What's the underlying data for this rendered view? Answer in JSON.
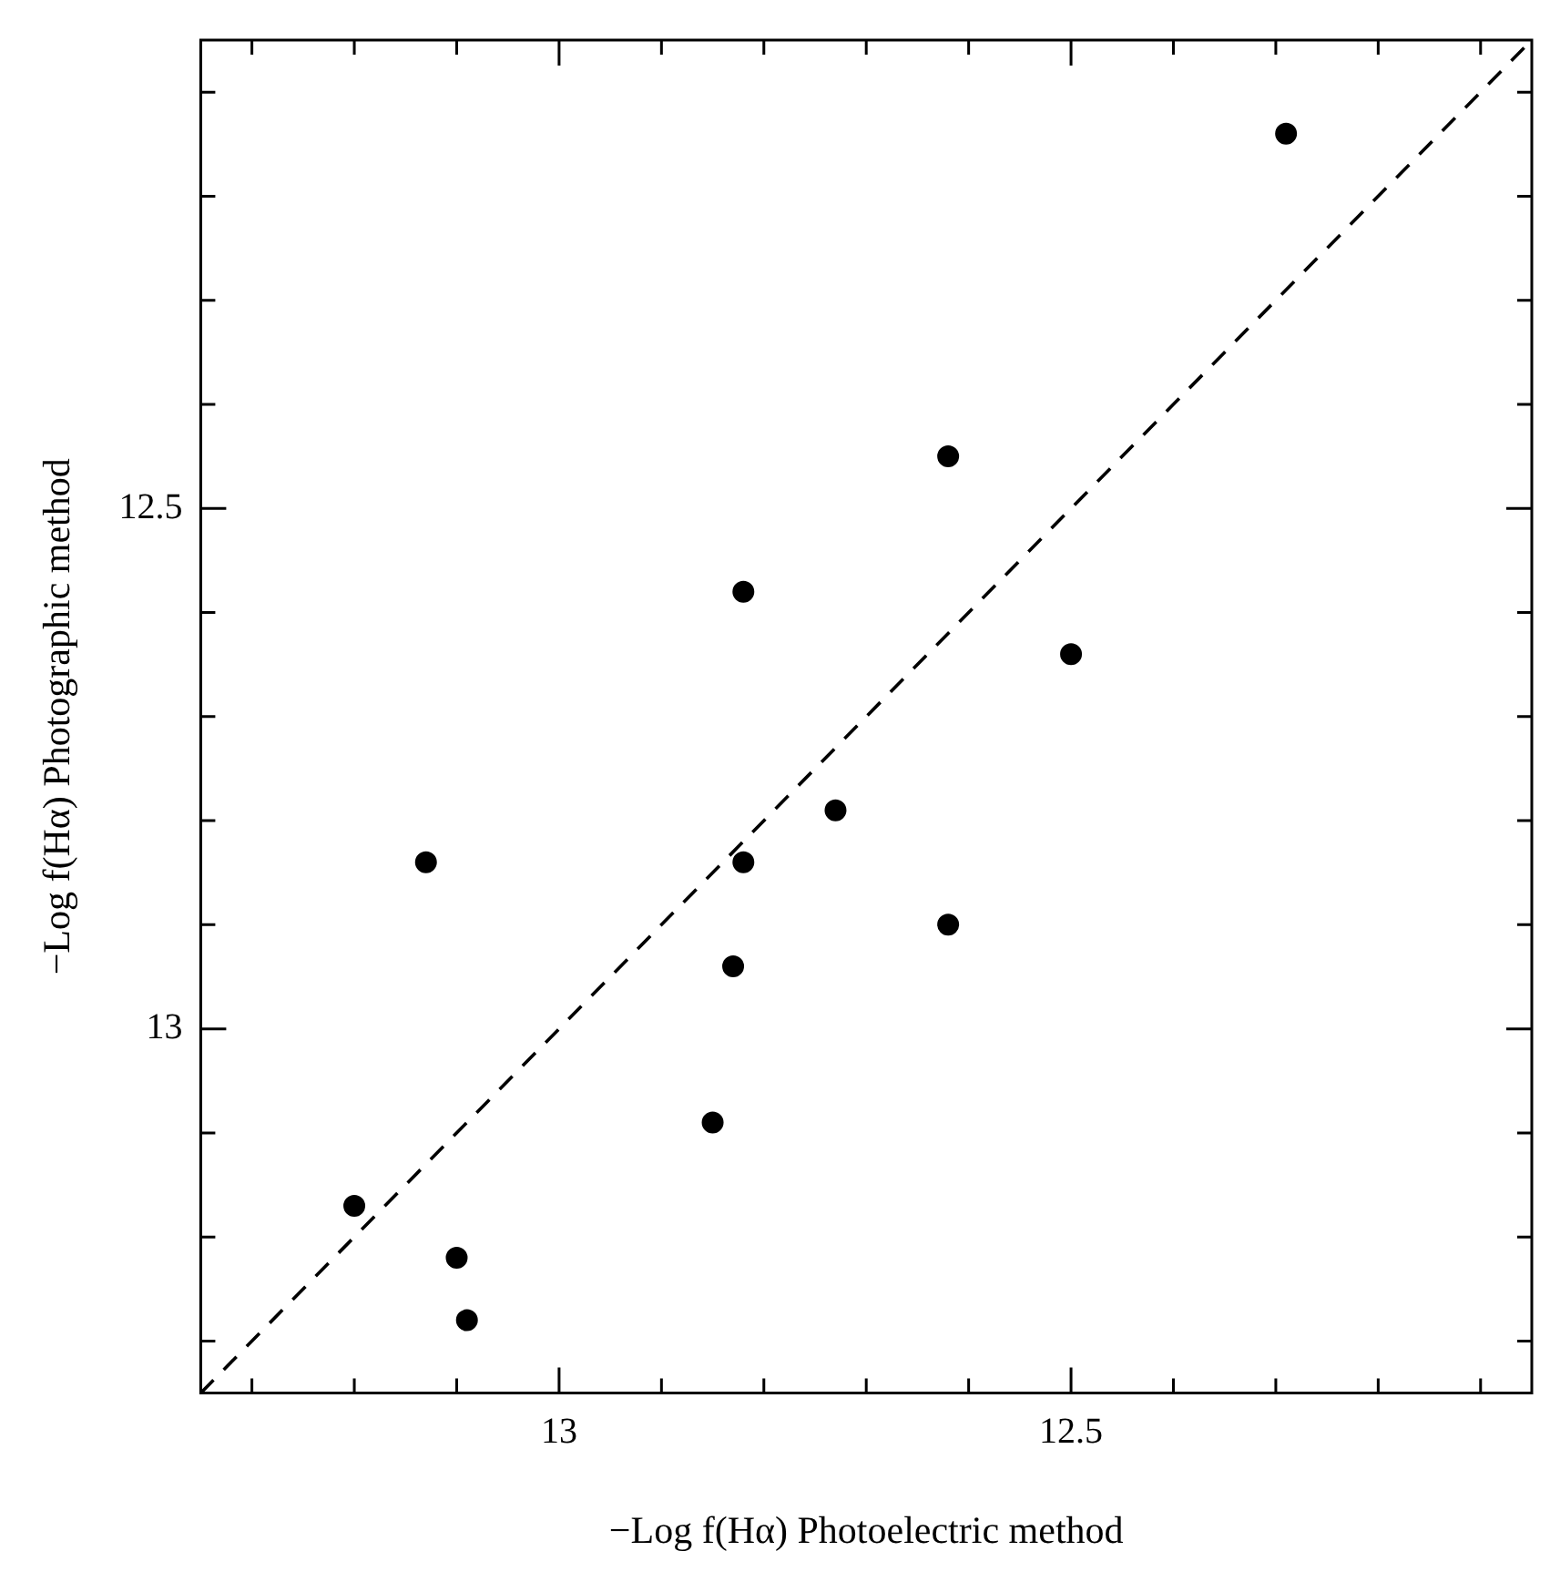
{
  "chart_data": {
    "type": "scatter",
    "xlabel": "−Log f(Hα) Photoelectric method",
    "ylabel": "−Log f(Hα) Photographic method",
    "xlim": [
      13.35,
      12.05
    ],
    "ylim": [
      13.35,
      12.05
    ],
    "xticks": [
      {
        "value": 13.3,
        "label": null
      },
      {
        "value": 13.2,
        "label": null
      },
      {
        "value": 13.1,
        "label": null
      },
      13,
      {
        "value": 12.9,
        "label": null
      },
      {
        "value": 12.8,
        "label": null
      },
      {
        "value": 12.7,
        "label": null
      },
      {
        "value": 12.6,
        "label": null
      },
      12.5,
      {
        "value": 12.4,
        "label": null
      },
      {
        "value": 12.3,
        "label": null
      },
      {
        "value": 12.2,
        "label": null
      },
      {
        "value": 12.1,
        "label": null
      }
    ],
    "yticks": [
      {
        "value": 13.3,
        "label": null
      },
      {
        "value": 13.2,
        "label": null
      },
      {
        "value": 13.1,
        "label": null
      },
      13,
      {
        "value": 12.9,
        "label": null
      },
      {
        "value": 12.8,
        "label": null
      },
      {
        "value": 12.7,
        "label": null
      },
      {
        "value": 12.6,
        "label": null
      },
      12.5,
      {
        "value": 12.4,
        "label": null
      },
      {
        "value": 12.3,
        "label": null
      },
      {
        "value": 12.2,
        "label": null
      },
      {
        "value": 12.1,
        "label": null
      }
    ],
    "grid": false,
    "legend": false,
    "series": [
      {
        "type": "scatter",
        "color": "#000000",
        "marker": "circle",
        "x": [
          12.29,
          12.82,
          12.5,
          12.73,
          13.13,
          12.62,
          12.83,
          12.85,
          13.1
        ],
        "values": [
          12.14,
          12.58,
          12.64,
          12.79,
          12.84,
          12.9,
          12.94,
          13.09,
          13.22
        ]
      },
      {
        "type": "scatter",
        "color": "#000000",
        "marker": "circle",
        "x": [
          12.62,
          12.82,
          13.2,
          13.09
        ],
        "values": [
          12.45,
          12.84,
          13.17,
          13.28
        ]
      },
      {
        "type": "line",
        "color": "#000000",
        "marker": "none",
        "line_style": "dashed",
        "x": [
          13.35,
          12.05
        ],
        "values": [
          13.35,
          12.05
        ]
      }
    ]
  }
}
